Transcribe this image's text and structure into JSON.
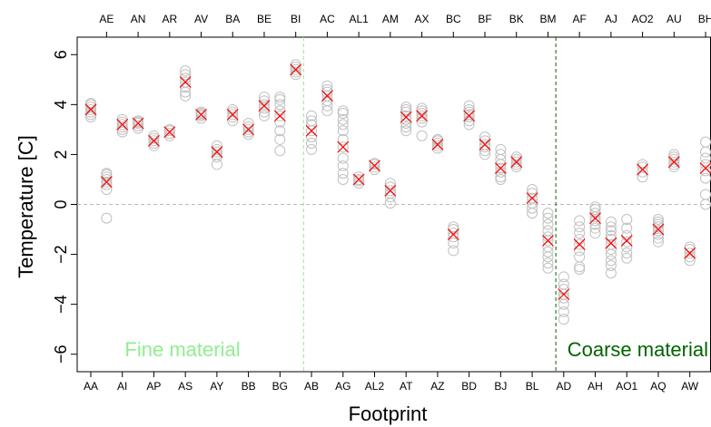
{
  "chart_data": {
    "type": "scatter",
    "title": "",
    "xlabel": "Footprint",
    "ylabel": "Temperature [C]",
    "ylim": [
      -6.7,
      6.7
    ],
    "yticks": [
      -6,
      -4,
      -2,
      0,
      2,
      4,
      6
    ],
    "ytick_labels": [
      "−6",
      "−4",
      "−2",
      "0",
      "2",
      "4",
      "6"
    ],
    "grid": false,
    "reference_line_y": 0,
    "categories": [
      "AA",
      "AE",
      "AI",
      "AN",
      "AP",
      "AR",
      "AS",
      "AV",
      "AY",
      "BA",
      "BB",
      "BE",
      "BG",
      "BI",
      "AB",
      "AC",
      "AG",
      "AL1",
      "AL2",
      "AM",
      "AT",
      "AX",
      "AZ",
      "BC",
      "BD",
      "BF",
      "BJ",
      "BK",
      "BL",
      "BM",
      "AD",
      "AF",
      "AH",
      "AJ",
      "AO1",
      "AO2",
      "AQ",
      "AU",
      "AW",
      "BH"
    ],
    "bottom_axis_labels": [
      "AA",
      "AI",
      "AP",
      "AS",
      "AY",
      "BB",
      "BG",
      "AB",
      "AG",
      "AL2",
      "AT",
      "AZ",
      "BD",
      "BJ",
      "BL",
      "AD",
      "AH",
      "AO1",
      "AQ",
      "AW"
    ],
    "top_axis_labels": [
      "AE",
      "AN",
      "AR",
      "AV",
      "BA",
      "BE",
      "BI",
      "AC",
      "AL1",
      "AM",
      "AX",
      "BC",
      "BF",
      "BK",
      "BM",
      "AF",
      "AJ",
      "AO2",
      "AU",
      "BH"
    ],
    "means": [
      3.8,
      0.9,
      3.2,
      3.25,
      2.55,
      2.9,
      4.9,
      3.6,
      2.1,
      3.6,
      3.0,
      3.95,
      3.55,
      5.4,
      2.95,
      4.35,
      2.3,
      1.0,
      1.55,
      0.55,
      3.5,
      3.55,
      2.4,
      -1.2,
      3.55,
      2.4,
      1.45,
      1.7,
      0.25,
      -1.45,
      -3.6,
      -1.6,
      -0.55,
      -1.55,
      -1.45,
      1.4,
      -1.0,
      1.7,
      -1.95,
      1.45
    ],
    "samples": [
      [
        3.5,
        3.6,
        3.7,
        3.8,
        3.9,
        4.0,
        4.05
      ],
      [
        -0.55,
        0.6,
        0.8,
        0.9,
        1.0,
        1.1,
        1.2,
        1.25
      ],
      [
        2.9,
        3.0,
        3.1,
        3.2,
        3.3,
        3.4
      ],
      [
        3.05,
        3.15,
        3.25,
        3.3,
        3.35
      ],
      [
        2.35,
        2.45,
        2.55,
        2.65,
        2.75
      ],
      [
        2.75,
        2.85,
        2.95,
        3.0
      ],
      [
        4.35,
        4.5,
        4.7,
        4.9,
        5.05,
        5.2,
        5.35
      ],
      [
        3.45,
        3.55,
        3.6,
        3.65,
        3.7
      ],
      [
        1.6,
        1.9,
        2.0,
        2.1,
        2.2,
        2.35
      ],
      [
        3.35,
        3.5,
        3.6,
        3.7,
        3.8
      ],
      [
        2.8,
        2.9,
        3.0,
        3.1,
        3.25
      ],
      [
        3.55,
        3.7,
        3.85,
        4.0,
        4.15,
        4.3
      ],
      [
        2.15,
        2.6,
        2.95,
        3.3,
        3.55,
        3.75,
        4.0,
        4.2,
        4.3
      ],
      [
        5.2,
        5.3,
        5.4,
        5.5,
        5.6
      ],
      [
        2.2,
        2.45,
        2.7,
        2.95,
        3.2,
        3.35,
        3.55
      ],
      [
        3.75,
        3.95,
        4.15,
        4.35,
        4.5,
        4.6,
        4.75
      ],
      [
        1.0,
        1.25,
        1.55,
        1.85,
        2.3,
        2.6,
        2.95,
        3.2,
        3.4,
        3.65,
        3.75
      ],
      [
        0.85,
        0.95,
        1.0,
        1.1
      ],
      [
        1.4,
        1.5,
        1.6,
        1.65
      ],
      [
        0.05,
        0.3,
        0.45,
        0.55,
        0.7,
        0.85
      ],
      [
        2.95,
        3.1,
        3.25,
        3.4,
        3.55,
        3.7,
        3.8,
        3.9
      ],
      [
        2.75,
        3.3,
        3.45,
        3.55,
        3.65,
        3.75,
        3.85
      ],
      [
        2.25,
        2.35,
        2.45,
        2.55,
        2.6
      ],
      [
        -1.85,
        -1.55,
        -1.3,
        -1.15,
        -1.0,
        -0.9
      ],
      [
        3.2,
        3.35,
        3.5,
        3.6,
        3.7,
        3.8,
        3.95
      ],
      [
        2.0,
        2.15,
        2.3,
        2.4,
        2.55,
        2.7
      ],
      [
        1.0,
        1.1,
        1.3,
        1.45,
        1.6,
        1.8,
        2.0,
        2.2
      ],
      [
        1.5,
        1.6,
        1.7,
        1.8,
        1.9
      ],
      [
        -0.35,
        -0.15,
        0.05,
        0.25,
        0.45,
        0.6
      ],
      [
        -2.55,
        -2.35,
        -2.1,
        -1.9,
        -1.7,
        -1.45,
        -1.3,
        -1.05,
        -0.8,
        -0.55,
        -0.35
      ],
      [
        -4.6,
        -4.3,
        -4.0,
        -3.75,
        -3.6,
        -3.4,
        -3.2,
        -2.9
      ],
      [
        -2.6,
        -2.5,
        -2.1,
        -1.85,
        -1.6,
        -1.4,
        -1.15,
        -0.9,
        -0.65
      ],
      [
        -1.15,
        -0.95,
        -0.8,
        -0.65,
        -0.5,
        -0.35,
        -0.2,
        -0.1
      ],
      [
        -2.75,
        -2.45,
        -2.25,
        -2.0,
        -1.8,
        -1.6,
        -1.4,
        -1.25,
        -1.05,
        -0.9,
        -0.7
      ],
      [
        -2.15,
        -1.95,
        -1.7,
        -1.5,
        -1.25,
        -0.95,
        -0.6
      ],
      [
        1.1,
        1.3,
        1.5,
        1.6
      ],
      [
        -1.5,
        -1.35,
        -1.2,
        -1.05,
        -0.9,
        -0.8,
        -0.7,
        -0.6
      ],
      [
        1.5,
        1.6,
        1.7,
        1.8,
        1.9,
        2.0
      ],
      [
        -2.25,
        -2.1,
        -1.95,
        -1.8,
        -1.7
      ],
      [
        0.0,
        0.4,
        1.05,
        1.35,
        1.6,
        1.85,
        2.1,
        2.5
      ]
    ],
    "dividers": [
      {
        "after_index": 13,
        "color": "#90ee90"
      },
      {
        "after_index": 29,
        "color": "#006400"
      }
    ],
    "regions": [
      {
        "label": "Fine material",
        "color": "#90ee90"
      },
      {
        "label": "Coarse material",
        "color": "#006400"
      }
    ],
    "colors": {
      "sample_marker": "#c0c0c0",
      "mean_marker": "#ff0000",
      "zero_line": "#bbbbbb",
      "axis": "#000000"
    }
  }
}
